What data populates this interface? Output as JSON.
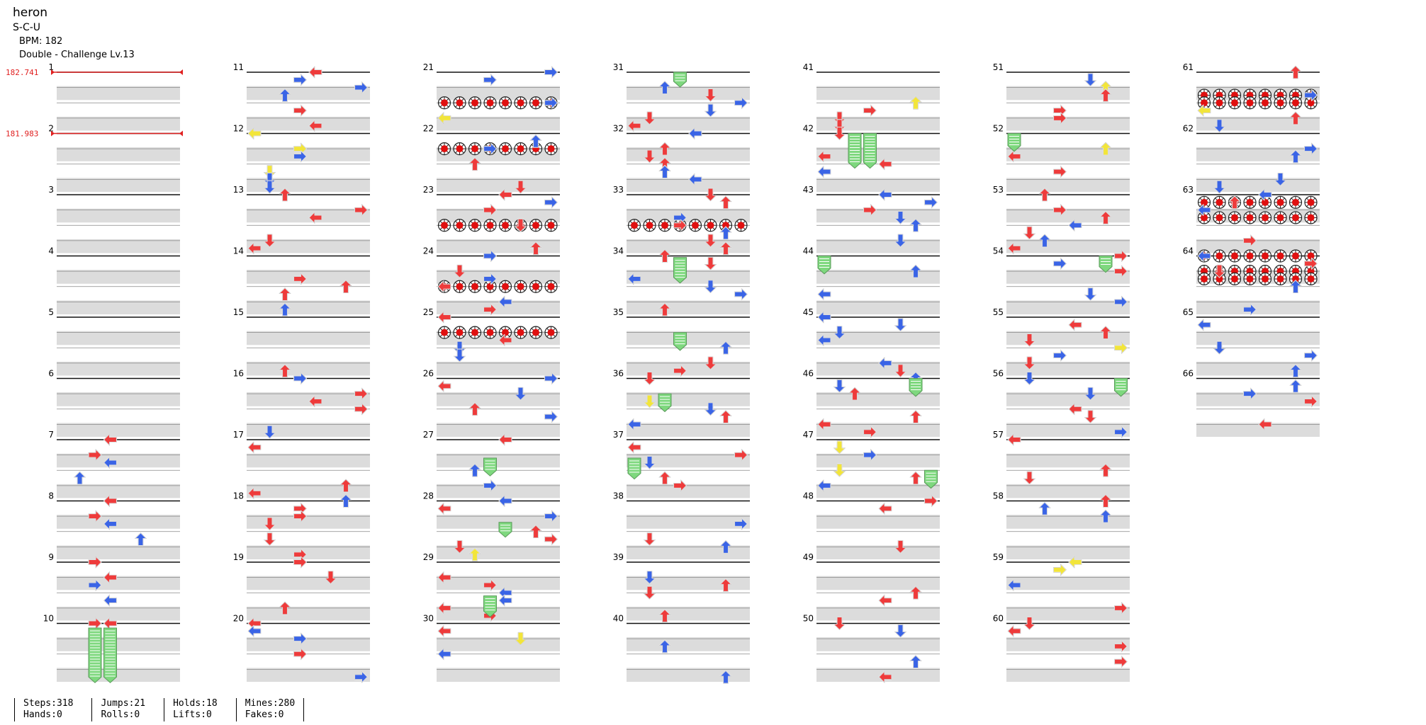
{
  "song": {
    "title": "heron",
    "artist": "S-C-U",
    "bpm_label": "BPM: 182",
    "difficulty": "Double - Challenge Lv.13"
  },
  "bpm_changes": [
    {
      "measure": 1,
      "label": "182.741"
    },
    {
      "measure": 2,
      "label": "181.983"
    }
  ],
  "measures": [
    "1",
    "2",
    "3",
    "4",
    "5",
    "6",
    "7",
    "8",
    "9",
    "10",
    "11",
    "12",
    "13",
    "14",
    "15",
    "16",
    "17",
    "18",
    "19",
    "20",
    "21",
    "22",
    "23",
    "24",
    "25",
    "26",
    "27",
    "28",
    "29",
    "30",
    "31",
    "32",
    "33",
    "34",
    "35",
    "36",
    "37",
    "38",
    "39",
    "40",
    "41",
    "42",
    "43",
    "44",
    "45",
    "46",
    "47",
    "48",
    "49",
    "50",
    "51",
    "52",
    "53",
    "54",
    "55",
    "56",
    "57",
    "58",
    "59",
    "60",
    "61",
    "62",
    "63",
    "64",
    "65",
    "66"
  ],
  "colors": {
    "red_arrow": "#ee3b3b",
    "blue_arrow": "#3a64e6",
    "yellow_arrow": "#f2e53a",
    "hold": "#7ed87e",
    "mine": "#e01010",
    "row_shade": "#dcdcdc",
    "bpm_line": "#e02020"
  },
  "stats": {
    "col1": [
      "Steps:318",
      "Hands:0"
    ],
    "col2": [
      "Jumps:21",
      "Rolls:0"
    ],
    "col3": [
      "Holds:18",
      "Lifts:0"
    ],
    "col4": [
      "Mines:280",
      "Fakes:0"
    ]
  }
}
